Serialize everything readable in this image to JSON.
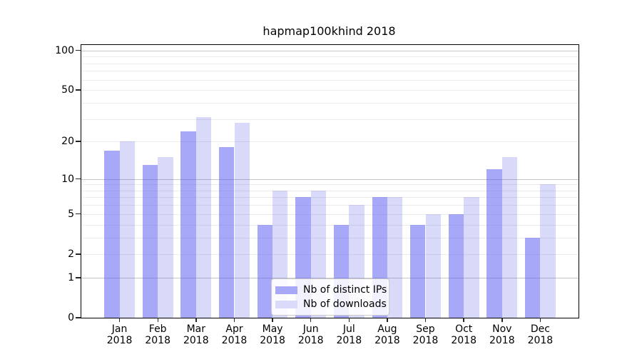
{
  "title": "hapmap100khind 2018",
  "legend": {
    "items": [
      {
        "label": "Nb of distinct IPs",
        "color": "#a8a8f8"
      },
      {
        "label": "Nb of downloads",
        "color": "#dadafa"
      }
    ]
  },
  "chart_data": {
    "type": "bar",
    "title": "hapmap100khind 2018",
    "categories": [
      "Jan 2018",
      "Feb 2018",
      "Mar 2018",
      "Apr 2018",
      "May 2018",
      "Jun 2018",
      "Jul 2018",
      "Aug 2018",
      "Sep 2018",
      "Oct 2018",
      "Nov 2018",
      "Dec 2018"
    ],
    "series": [
      {
        "name": "Nb of distinct IPs",
        "color": "#a8a8f8",
        "color_rgba": "rgba(81,81,241,0.5)",
        "values": [
          17,
          13,
          24,
          18,
          4,
          7,
          4,
          7,
          4,
          5,
          12,
          3
        ]
      },
      {
        "name": "Nb of downloads",
        "color": "#dadafa",
        "color_rgba": "rgba(65,65,230,0.2)",
        "values": [
          20,
          15,
          31,
          28,
          8,
          8,
          6,
          7,
          5,
          7,
          15,
          9
        ]
      }
    ],
    "xlabel": "",
    "ylabel": "",
    "yscale": "log10(1+v) symlog-like",
    "ylim": [
      0,
      110
    ],
    "yticks": [
      0,
      1,
      2,
      5,
      10,
      20,
      50,
      100
    ],
    "major_gridlines": [
      1,
      10,
      100
    ],
    "minor_gridlines": [
      2,
      3,
      4,
      5,
      6,
      7,
      8,
      9,
      20,
      30,
      40,
      50,
      60,
      70,
      80,
      90
    ],
    "grid": true,
    "grid_major_color": "#c6c6c6",
    "grid_minor_color": "#ececec",
    "legend_position": "lower center"
  }
}
